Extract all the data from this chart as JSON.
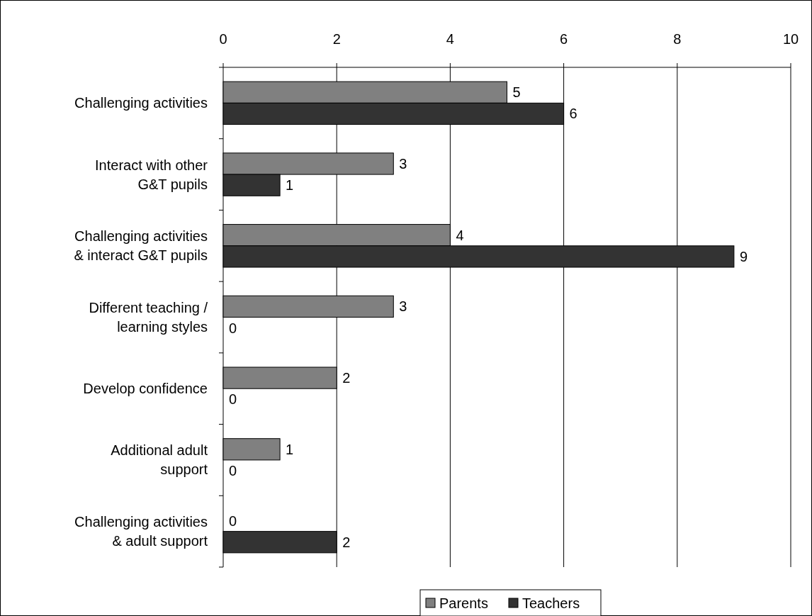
{
  "chart_data": {
    "type": "bar",
    "orientation": "horizontal",
    "categories": [
      "Challenging activities",
      "Interact with other G&T pupils",
      "Challenging activities & interact G&T pupils",
      "Different teaching / learning styles",
      "Develop confidence",
      "Additional adult support",
      "Challenging activities & adult support"
    ],
    "series": [
      {
        "name": "Parents",
        "color": "#808080",
        "values": [
          5,
          3,
          4,
          3,
          2,
          1,
          0
        ]
      },
      {
        "name": "Teachers",
        "color": "#333333",
        "values": [
          6,
          1,
          9,
          0,
          0,
          0,
          2
        ]
      }
    ],
    "xlim": [
      0,
      10
    ],
    "xticks": [
      0,
      2,
      4,
      6,
      8,
      10
    ],
    "grid": "x",
    "legend": "bottom",
    "data_labels": true
  }
}
